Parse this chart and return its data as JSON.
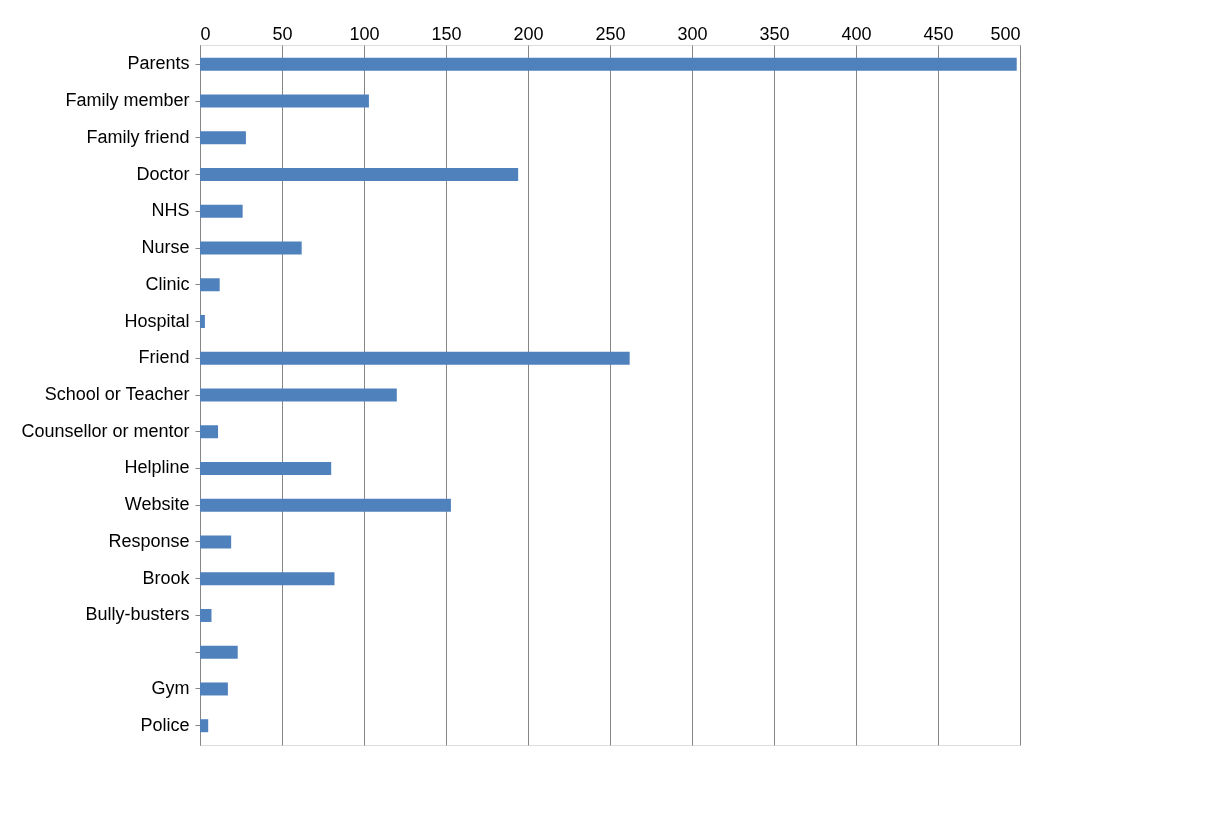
{
  "chart_data": {
    "type": "bar",
    "orientation": "horizontal",
    "categories": [
      "Parents",
      "Family member",
      "Family friend",
      "Doctor",
      "NHS",
      "Nurse",
      "Clinic",
      "Hospital",
      "Friend",
      "School or Teacher",
      "Counsellor or mentor",
      "Helpline",
      "Website",
      "Response",
      "Brook",
      "Bully-busters",
      null,
      "Gym",
      "Police"
    ],
    "values": [
      498,
      103,
      28,
      194,
      26,
      62,
      12,
      3,
      262,
      120,
      11,
      80,
      153,
      19,
      82,
      7,
      23,
      17,
      5
    ],
    "color": "#4f81bd",
    "xlim": [
      0,
      500
    ],
    "xticks": [
      0,
      50,
      100,
      150,
      200,
      250,
      300,
      350,
      400,
      450,
      500
    ],
    "grid": "x"
  }
}
